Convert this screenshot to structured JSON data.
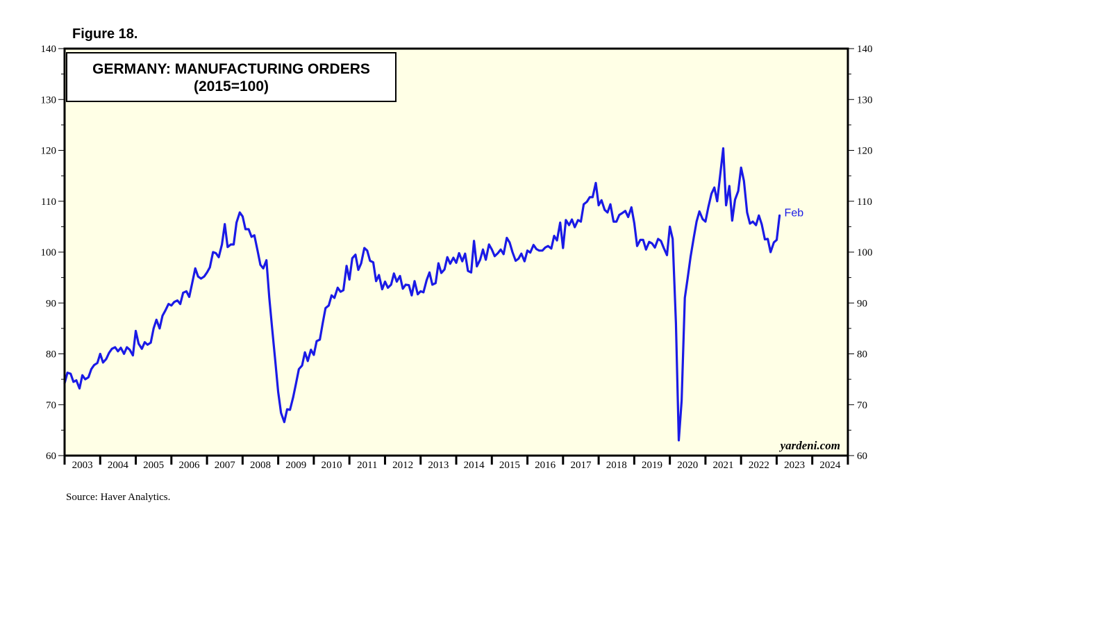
{
  "figure_label": "Figure 18.",
  "source": "Source: Haver Analytics.",
  "brand": "yardeni.com",
  "colors": {
    "plot_bg": "#FFFFE6",
    "line": "#1A1AE6",
    "axis": "#000000"
  },
  "chart_data": {
    "type": "line",
    "title": "GERMANY: MANUFACTURING ORDERS",
    "subtitle": "(2015=100)",
    "ylim": [
      60,
      140
    ],
    "y_ticks": [
      60,
      70,
      80,
      90,
      100,
      110,
      120,
      130,
      140
    ],
    "x_range": [
      2003.0,
      2025.0
    ],
    "x_tick_labels": [
      "2003",
      "2004",
      "2005",
      "2006",
      "2007",
      "2008",
      "2009",
      "2010",
      "2011",
      "2012",
      "2013",
      "2014",
      "2015",
      "2016",
      "2017",
      "2018",
      "2019",
      "2020",
      "2021",
      "2022",
      "2023",
      "2024"
    ],
    "end_label": "Feb",
    "grid": false,
    "series": [
      {
        "x": [
          2003.0,
          2003.08,
          2003.17,
          2003.25,
          2003.33,
          2003.42,
          2003.5,
          2003.58,
          2003.67,
          2003.75,
          2003.83,
          2003.92,
          2004.0,
          2004.08,
          2004.17,
          2004.25,
          2004.33,
          2004.42,
          2004.5,
          2004.58,
          2004.67,
          2004.75,
          2004.83,
          2004.92,
          2005.0,
          2005.08,
          2005.17,
          2005.25,
          2005.33,
          2005.42,
          2005.5,
          2005.58,
          2005.67,
          2005.75,
          2005.83,
          2005.92,
          2006.0,
          2006.08,
          2006.17,
          2006.25,
          2006.33,
          2006.42,
          2006.5,
          2006.58,
          2006.67,
          2006.75,
          2006.83,
          2006.92,
          2007.0,
          2007.08,
          2007.17,
          2007.25,
          2007.33,
          2007.42,
          2007.5,
          2007.58,
          2007.67,
          2007.75,
          2007.83,
          2007.92,
          2008.0,
          2008.08,
          2008.17,
          2008.25,
          2008.33,
          2008.42,
          2008.5,
          2008.58,
          2008.67,
          2008.75,
          2008.83,
          2008.92,
          2009.0,
          2009.08,
          2009.17,
          2009.25,
          2009.33,
          2009.42,
          2009.5,
          2009.58,
          2009.67,
          2009.75,
          2009.83,
          2009.92,
          2010.0,
          2010.08,
          2010.17,
          2010.25,
          2010.33,
          2010.42,
          2010.5,
          2010.58,
          2010.67,
          2010.75,
          2010.83,
          2010.92,
          2011.0,
          2011.08,
          2011.17,
          2011.25,
          2011.33,
          2011.42,
          2011.5,
          2011.58,
          2011.67,
          2011.75,
          2011.83,
          2011.92,
          2012.0,
          2012.08,
          2012.17,
          2012.25,
          2012.33,
          2012.42,
          2012.5,
          2012.58,
          2012.67,
          2012.75,
          2012.83,
          2012.92,
          2013.0,
          2013.08,
          2013.17,
          2013.25,
          2013.33,
          2013.42,
          2013.5,
          2013.58,
          2013.67,
          2013.75,
          2013.83,
          2013.92,
          2014.0,
          2014.08,
          2014.17,
          2014.25,
          2014.33,
          2014.42,
          2014.5,
          2014.58,
          2014.67,
          2014.75,
          2014.83,
          2014.92,
          2015.0,
          2015.08,
          2015.17,
          2015.25,
          2015.33,
          2015.42,
          2015.5,
          2015.58,
          2015.67,
          2015.75,
          2015.83,
          2015.92,
          2016.0,
          2016.08,
          2016.17,
          2016.25,
          2016.33,
          2016.42,
          2016.5,
          2016.58,
          2016.67,
          2016.75,
          2016.83,
          2016.92,
          2017.0,
          2017.08,
          2017.17,
          2017.25,
          2017.33,
          2017.42,
          2017.5,
          2017.58,
          2017.67,
          2017.75,
          2017.83,
          2017.92,
          2018.0,
          2018.08,
          2018.17,
          2018.25,
          2018.33,
          2018.42,
          2018.5,
          2018.58,
          2018.67,
          2018.75,
          2018.83,
          2018.92,
          2019.0,
          2019.08,
          2019.17,
          2019.25,
          2019.33,
          2019.42,
          2019.5,
          2019.58,
          2019.67,
          2019.75,
          2019.83,
          2019.92,
          2020.0,
          2020.08,
          2020.17,
          2020.25,
          2020.33,
          2020.42,
          2020.5,
          2020.58,
          2020.67,
          2020.75,
          2020.83,
          2020.92,
          2021.0,
          2021.08,
          2021.17,
          2021.25,
          2021.33,
          2021.42,
          2021.5,
          2021.58,
          2021.67,
          2021.75,
          2021.83,
          2021.92,
          2022.0,
          2022.08,
          2022.17,
          2022.25,
          2022.33,
          2022.42,
          2022.5,
          2022.58,
          2022.67,
          2022.75,
          2022.83,
          2022.92,
          2023.0,
          2023.08
        ],
        "values": [
          74.2,
          76.3,
          76.1,
          74.5,
          74.8,
          73.2,
          75.8,
          75.0,
          75.4,
          77.0,
          77.8,
          78.2,
          80.0,
          78.3,
          79.0,
          80.2,
          81.0,
          81.3,
          80.5,
          81.2,
          80.0,
          81.3,
          80.8,
          79.7,
          84.5,
          82.0,
          81.0,
          82.3,
          81.8,
          82.2,
          85.0,
          86.7,
          85.0,
          87.5,
          88.5,
          89.8,
          89.5,
          90.2,
          90.5,
          89.8,
          92.0,
          92.3,
          91.2,
          93.8,
          96.8,
          95.2,
          94.8,
          95.2,
          96.0,
          97.0,
          100.0,
          99.8,
          99.0,
          101.5,
          105.5,
          101.0,
          101.5,
          101.5,
          105.8,
          107.8,
          107.0,
          104.5,
          104.5,
          103.0,
          103.3,
          100.3,
          97.5,
          96.8,
          98.4,
          91.0,
          85.0,
          78.5,
          72.5,
          68.4,
          66.6,
          69.1,
          69.0,
          71.5,
          74.2,
          77.0,
          77.7,
          80.3,
          78.6,
          80.8,
          79.8,
          82.5,
          82.8,
          86.0,
          89.0,
          89.5,
          91.5,
          91.0,
          93.0,
          92.2,
          92.5,
          97.3,
          94.6,
          98.8,
          99.5,
          96.5,
          97.8,
          100.8,
          100.3,
          98.3,
          98.0,
          94.3,
          95.5,
          92.7,
          94.2,
          93.0,
          93.6,
          95.8,
          94.2,
          95.3,
          92.8,
          93.6,
          93.5,
          91.5,
          94.3,
          91.7,
          92.3,
          92.1,
          94.5,
          96.0,
          93.6,
          93.9,
          97.8,
          95.9,
          96.6,
          99.0,
          97.7,
          98.9,
          97.9,
          99.8,
          98.2,
          99.7,
          96.3,
          96.0,
          102.2,
          97.2,
          98.5,
          100.5,
          98.5,
          101.5,
          100.5,
          99.2,
          99.8,
          100.5,
          99.6,
          102.8,
          101.9,
          100.0,
          98.3,
          98.7,
          99.7,
          98.2,
          100.3,
          99.9,
          101.4,
          100.6,
          100.3,
          100.3,
          100.9,
          101.2,
          100.7,
          103.2,
          102.3,
          105.8,
          100.8,
          106.3,
          105.3,
          106.4,
          104.9,
          106.3,
          106.0,
          109.4,
          109.9,
          110.8,
          110.8,
          113.6,
          109.2,
          110.2,
          108.3,
          107.8,
          109.4,
          106.0,
          106.0,
          107.3,
          107.7,
          108.1,
          106.9,
          108.8,
          105.7,
          101.2,
          102.4,
          102.4,
          100.5,
          102.0,
          101.7,
          100.9,
          102.6,
          102.2,
          100.8,
          99.4,
          105.0,
          102.6,
          86.0,
          63.0,
          70.8,
          91.0,
          94.9,
          99.0,
          102.8,
          106.0,
          108.0,
          106.5,
          106.0,
          108.8,
          111.5,
          112.7,
          110.0,
          115.5,
          120.4,
          109.2,
          113.0,
          106.2,
          110.3,
          112.0,
          116.6,
          114.0,
          107.8,
          105.6,
          106.0,
          105.3,
          107.2,
          105.5,
          102.5,
          102.6,
          100.0,
          101.9,
          102.4,
          107.2
        ]
      }
    ]
  }
}
